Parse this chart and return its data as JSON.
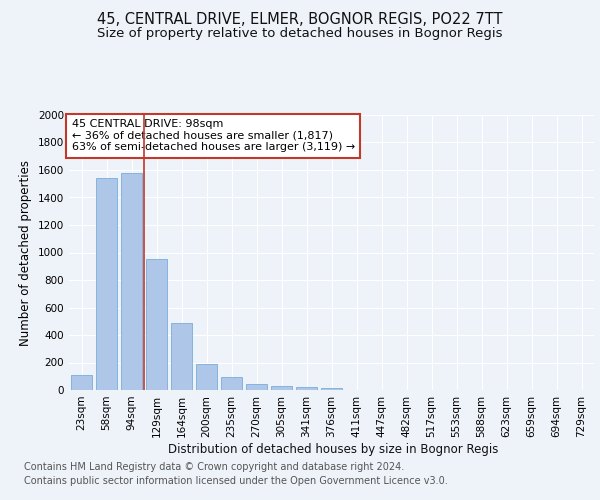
{
  "title_line1": "45, CENTRAL DRIVE, ELMER, BOGNOR REGIS, PO22 7TT",
  "title_line2": "Size of property relative to detached houses in Bognor Regis",
  "xlabel": "Distribution of detached houses by size in Bognor Regis",
  "ylabel": "Number of detached properties",
  "categories": [
    "23sqm",
    "58sqm",
    "94sqm",
    "129sqm",
    "164sqm",
    "200sqm",
    "235sqm",
    "270sqm",
    "305sqm",
    "341sqm",
    "376sqm",
    "411sqm",
    "447sqm",
    "482sqm",
    "517sqm",
    "553sqm",
    "588sqm",
    "623sqm",
    "659sqm",
    "694sqm",
    "729sqm"
  ],
  "values": [
    110,
    1540,
    1580,
    950,
    490,
    190,
    95,
    45,
    30,
    22,
    18,
    0,
    0,
    0,
    0,
    0,
    0,
    0,
    0,
    0,
    0
  ],
  "bar_color": "#aec6e8",
  "bar_edge_color": "#7aadda",
  "vline_color": "#c0392b",
  "annotation_text": "45 CENTRAL DRIVE: 98sqm\n← 36% of detached houses are smaller (1,817)\n63% of semi-detached houses are larger (3,119) →",
  "annotation_box_color": "#ffffff",
  "annotation_box_edge_color": "#c0392b",
  "ylim": [
    0,
    2000
  ],
  "yticks": [
    0,
    200,
    400,
    600,
    800,
    1000,
    1200,
    1400,
    1600,
    1800,
    2000
  ],
  "footer_line1": "Contains HM Land Registry data © Crown copyright and database right 2024.",
  "footer_line2": "Contains public sector information licensed under the Open Government Licence v3.0.",
  "bg_color": "#eef2f9",
  "plot_bg_color": "#eef2f9",
  "grid_color": "#ffffff",
  "title_fontsize": 10.5,
  "subtitle_fontsize": 9.5,
  "axis_label_fontsize": 8.5,
  "tick_fontsize": 7.5,
  "annotation_fontsize": 8,
  "footer_fontsize": 7
}
